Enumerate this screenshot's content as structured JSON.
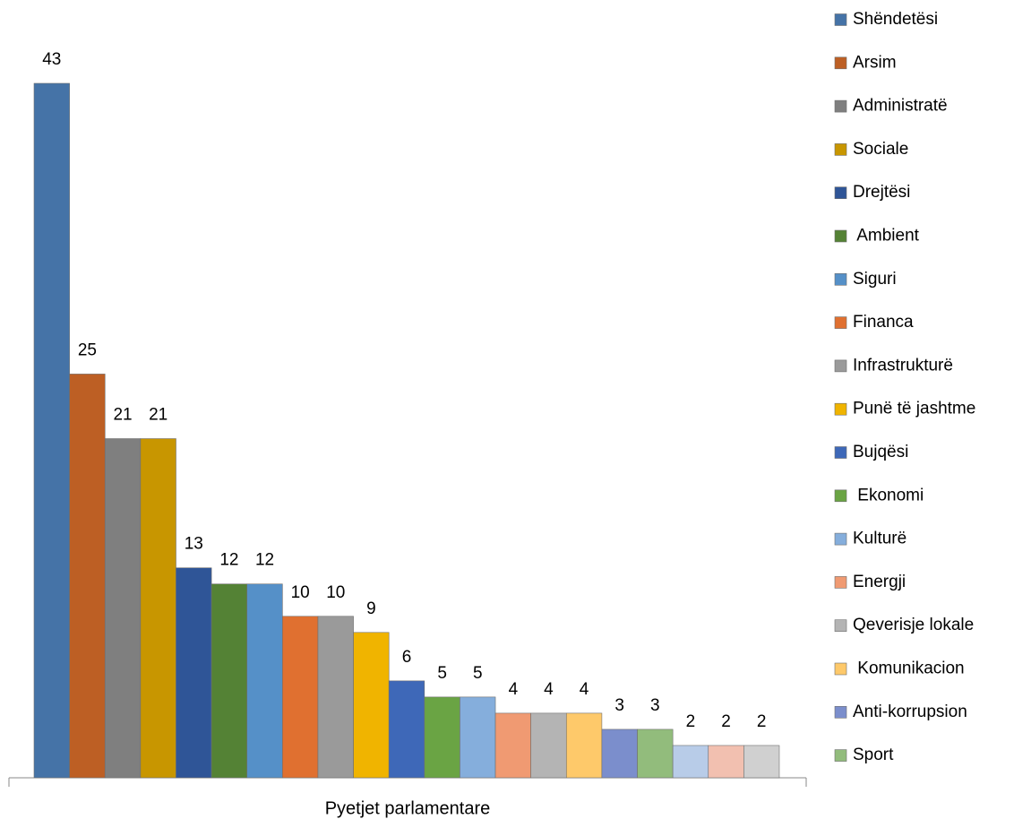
{
  "chart_data": {
    "type": "bar",
    "categories": [
      "Pyetjet parlamentare"
    ],
    "series": [
      {
        "name": "Shëndetësi",
        "color": "#4573a7",
        "values": [
          43
        ]
      },
      {
        "name": "Arsim",
        "color": "#bd5f24",
        "values": [
          25
        ]
      },
      {
        "name": "Administratë",
        "color": "#7f7f7f",
        "values": [
          21
        ]
      },
      {
        "name": "Sociale",
        "color": "#c89600",
        "values": [
          21
        ]
      },
      {
        "name": "Drejtësi",
        "color": "#2f5597",
        "values": [
          13
        ]
      },
      {
        "name": " Ambient",
        "color": "#548235",
        "values": [
          12
        ]
      },
      {
        "name": "Siguri",
        "color": "#5590c8",
        "values": [
          12
        ]
      },
      {
        "name": "Financa",
        "color": "#e07030",
        "values": [
          10
        ]
      },
      {
        "name": "Infrastrukturë",
        "color": "#9a9a9a",
        "values": [
          10
        ]
      },
      {
        "name": "Punë të jashtme",
        "color": "#f0b400",
        "values": [
          9
        ]
      },
      {
        "name": "Bujqësi",
        "color": "#3e68b8",
        "values": [
          6
        ]
      },
      {
        "name": " Ekonomi",
        "color": "#6aa444",
        "values": [
          5
        ]
      },
      {
        "name": "Kulturë",
        "color": "#85aedc",
        "values": [
          5
        ]
      },
      {
        "name": "Energji",
        "color": "#f09a72",
        "values": [
          4
        ]
      },
      {
        "name": "Qeverisje lokale",
        "color": "#b4b4b4",
        "values": [
          4
        ]
      },
      {
        "name": " Komunikacion",
        "color": "#fec96a",
        "values": [
          4
        ]
      },
      {
        "name": "Anti-korrupsion",
        "color": "#7b8ecc",
        "values": [
          3
        ]
      },
      {
        "name": "Sport",
        "color": "#92bc7c",
        "values": [
          3
        ]
      },
      {
        "name": null,
        "color": "#b8cce8",
        "values": [
          2
        ]
      },
      {
        "name": null,
        "color": "#f2c0b0",
        "values": [
          2
        ]
      },
      {
        "name": null,
        "color": "#d0d0d0",
        "values": [
          2
        ]
      }
    ]
  }
}
